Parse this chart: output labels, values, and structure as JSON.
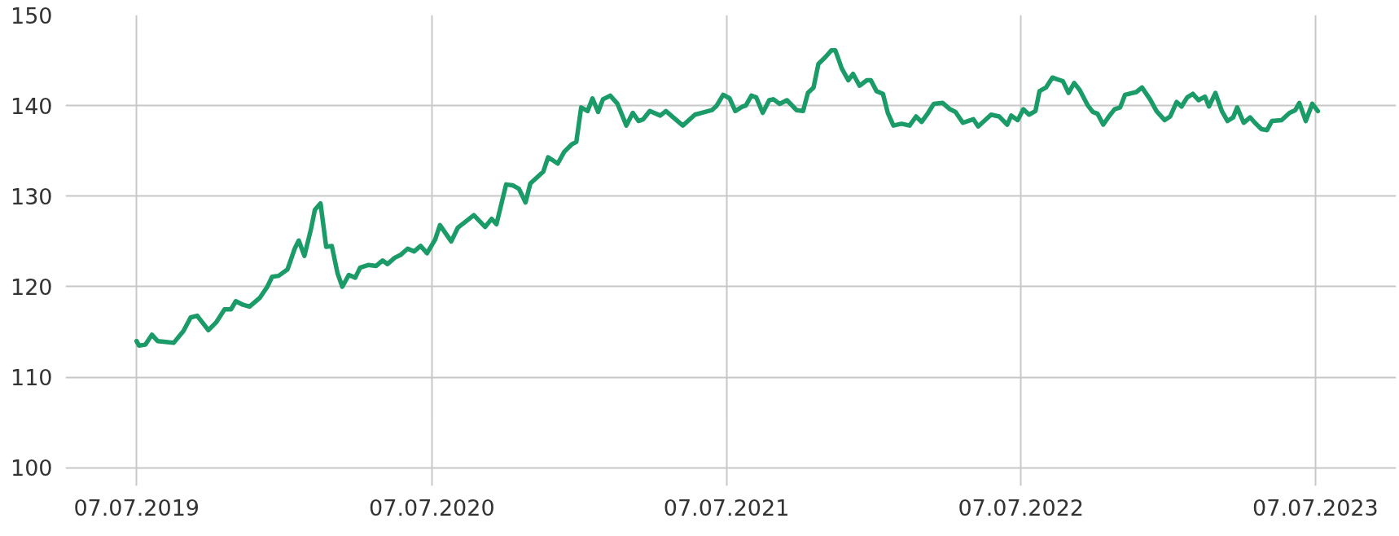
{
  "chart_data": {
    "type": "line",
    "grid": true,
    "marker": "none",
    "line_style": "solid",
    "xlim": [
      "2019-04-10",
      "2023-10-15"
    ],
    "ylim": [
      98,
      150
    ],
    "xticks": [
      {
        "value": "2019-07-07",
        "label": "07.07.2019"
      },
      {
        "value": "2020-07-07",
        "label": "07.07.2020"
      },
      {
        "value": "2021-07-07",
        "label": "07.07.2021"
      },
      {
        "value": "2022-07-07",
        "label": "07.07.2022"
      },
      {
        "value": "2023-07-07",
        "label": "07.07.2023"
      }
    ],
    "yticks": [
      100,
      110,
      120,
      130,
      140,
      150
    ],
    "x": [
      "2019-07-07",
      "2019-07-10",
      "2019-07-18",
      "2019-07-26",
      "2019-08-02",
      "2019-08-12",
      "2019-08-22",
      "2019-09-03",
      "2019-09-12",
      "2019-09-20",
      "2019-10-04",
      "2019-10-14",
      "2019-10-24",
      "2019-11-01",
      "2019-11-07",
      "2019-11-16",
      "2019-11-24",
      "2019-12-07",
      "2019-12-16",
      "2019-12-22",
      "2019-12-30",
      "2020-01-10",
      "2020-01-19",
      "2020-01-24",
      "2020-01-31",
      "2020-02-08",
      "2020-02-13",
      "2020-02-20",
      "2020-02-27",
      "2020-03-05",
      "2020-03-12",
      "2020-03-18",
      "2020-03-26",
      "2020-04-03",
      "2020-04-09",
      "2020-04-19",
      "2020-04-29",
      "2020-05-07",
      "2020-05-13",
      "2020-05-22",
      "2020-05-29",
      "2020-06-07",
      "2020-06-15",
      "2020-06-23",
      "2020-07-01",
      "2020-07-11",
      "2020-07-17",
      "2020-07-31",
      "2020-08-08",
      "2020-08-18",
      "2020-08-28",
      "2020-09-11",
      "2020-09-19",
      "2020-09-25",
      "2020-10-07",
      "2020-10-15",
      "2020-10-23",
      "2020-10-31",
      "2020-11-06",
      "2020-11-22",
      "2020-11-28",
      "2020-12-10",
      "2020-12-18",
      "2020-12-27",
      "2021-01-02",
      "2021-01-08",
      "2021-01-16",
      "2021-01-22",
      "2021-01-29",
      "2021-02-04",
      "2021-02-13",
      "2021-02-22",
      "2021-03-05",
      "2021-03-13",
      "2021-03-20",
      "2021-03-26",
      "2021-04-03",
      "2021-04-16",
      "2021-04-23",
      "2021-05-14",
      "2021-05-29",
      "2021-06-06",
      "2021-06-19",
      "2021-06-25",
      "2021-07-03",
      "2021-07-11",
      "2021-07-18",
      "2021-07-27",
      "2021-07-31",
      "2021-08-07",
      "2021-08-13",
      "2021-08-21",
      "2021-08-29",
      "2021-09-03",
      "2021-09-11",
      "2021-09-20",
      "2021-10-02",
      "2021-10-10",
      "2021-10-16",
      "2021-10-23",
      "2021-10-29",
      "2021-11-06",
      "2021-11-14",
      "2021-11-19",
      "2021-11-27",
      "2021-12-05",
      "2021-12-11",
      "2021-12-19",
      "2021-12-28",
      "2022-01-02",
      "2022-01-09",
      "2022-01-17",
      "2022-01-23",
      "2022-01-30",
      "2022-02-09",
      "2022-02-19",
      "2022-02-27",
      "2022-03-06",
      "2022-03-14",
      "2022-03-21",
      "2022-04-01",
      "2022-04-10",
      "2022-04-17",
      "2022-04-26",
      "2022-05-09",
      "2022-05-15",
      "2022-05-31",
      "2022-06-10",
      "2022-06-20",
      "2022-06-25",
      "2022-07-03",
      "2022-07-10",
      "2022-07-17",
      "2022-07-25",
      "2022-07-30",
      "2022-08-07",
      "2022-08-15",
      "2022-08-21",
      "2022-08-28",
      "2022-09-04",
      "2022-09-11",
      "2022-09-18",
      "2022-09-28",
      "2022-10-04",
      "2022-10-10",
      "2022-10-17",
      "2022-10-24",
      "2022-10-31",
      "2022-11-07",
      "2022-11-13",
      "2022-11-27",
      "2022-12-04",
      "2022-12-14",
      "2022-12-22",
      "2023-01-01",
      "2023-01-08",
      "2023-01-16",
      "2023-01-22",
      "2023-01-29",
      "2023-02-05",
      "2023-02-12",
      "2023-02-20",
      "2023-02-25",
      "2023-03-05",
      "2023-03-13",
      "2023-03-20",
      "2023-03-27",
      "2023-04-01",
      "2023-04-09",
      "2023-04-17",
      "2023-04-23",
      "2023-05-01",
      "2023-05-08",
      "2023-05-14",
      "2023-05-26",
      "2023-06-05",
      "2023-06-12",
      "2023-06-17",
      "2023-06-25",
      "2023-07-03",
      "2023-07-10"
    ],
    "series": [
      {
        "color": "#1a9b68",
        "values": [
          114.0,
          113.5,
          113.6,
          114.7,
          114.0,
          113.9,
          113.8,
          115.1,
          116.6,
          116.8,
          115.2,
          116.1,
          117.5,
          117.5,
          118.4,
          118.0,
          117.8,
          118.8,
          120.0,
          121.1,
          121.2,
          121.9,
          124.2,
          125.1,
          123.4,
          126.3,
          128.5,
          129.2,
          124.4,
          124.5,
          121.5,
          120.0,
          121.3,
          121.0,
          122.1,
          122.4,
          122.3,
          122.9,
          122.5,
          123.2,
          123.5,
          124.2,
          123.9,
          124.5,
          123.7,
          125.2,
          126.8,
          125.0,
          126.5,
          127.2,
          127.9,
          126.6,
          127.5,
          126.9,
          131.3,
          131.2,
          130.8,
          129.3,
          131.4,
          132.7,
          134.3,
          133.6,
          134.9,
          135.7,
          136.0,
          139.8,
          139.4,
          140.8,
          139.3,
          140.7,
          141.1,
          140.2,
          137.8,
          139.2,
          138.3,
          138.5,
          139.4,
          138.9,
          139.4,
          137.8,
          139.0,
          139.2,
          139.5,
          140.0,
          141.2,
          140.8,
          139.4,
          139.9,
          140.0,
          141.1,
          140.9,
          139.2,
          140.6,
          140.7,
          140.2,
          140.6,
          139.5,
          139.4,
          141.4,
          142.0,
          144.6,
          145.3,
          146.1,
          146.1,
          144.1,
          142.8,
          143.5,
          142.2,
          142.8,
          142.8,
          141.6,
          141.3,
          139.2,
          137.8,
          138.0,
          137.8,
          138.8,
          138.2,
          139.2,
          140.2,
          140.3,
          139.6,
          139.3,
          138.1,
          138.5,
          137.7,
          139.0,
          138.8,
          137.9,
          138.9,
          138.4,
          139.6,
          139.0,
          139.4,
          141.6,
          142.0,
          143.1,
          142.9,
          142.7,
          141.4,
          142.5,
          141.7,
          140.0,
          139.3,
          139.1,
          137.9,
          138.8,
          139.6,
          139.8,
          141.2,
          141.5,
          142.0,
          140.7,
          139.4,
          138.4,
          138.8,
          140.4,
          139.9,
          140.9,
          141.3,
          140.6,
          141.0,
          139.9,
          141.4,
          139.4,
          138.3,
          138.7,
          139.8,
          138.1,
          138.7,
          138.1,
          137.4,
          137.3,
          138.3,
          138.4,
          139.2,
          139.5,
          140.3,
          138.3,
          140.2,
          139.4
        ]
      }
    ]
  }
}
